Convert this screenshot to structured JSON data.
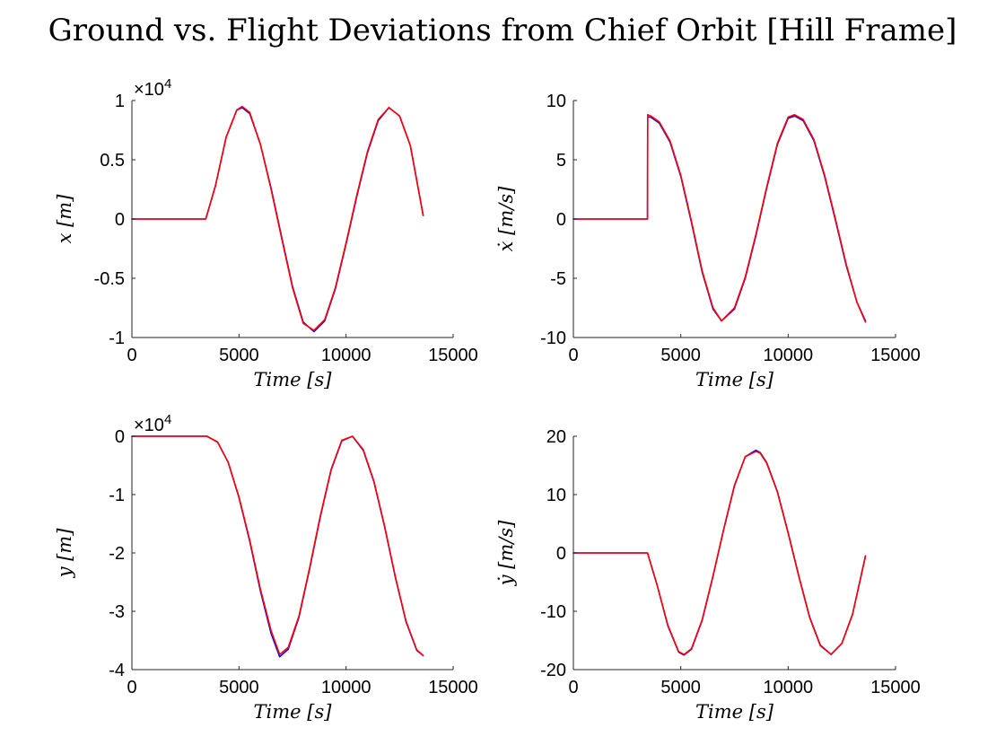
{
  "title": "Ground vs. Flight Deviations from Chief Orbit [Hill Frame]",
  "colors": {
    "ground": "#0000ff",
    "flight": "#ff0000",
    "axes": "#262626"
  },
  "chart_data": [
    {
      "type": "line",
      "xlabel": "Time [s]",
      "ylabel": "x [m]",
      "xlim": [
        0,
        15000
      ],
      "ylim": [
        -10000,
        10000
      ],
      "xticks": [
        0,
        5000,
        10000,
        15000
      ],
      "xtick_labels": [
        "0",
        "5000",
        "10000",
        "15000"
      ],
      "yticks": [
        -10000,
        -5000,
        0,
        5000,
        10000
      ],
      "ytick_labels": [
        "-1",
        "-0.5",
        "0",
        "0.5",
        "1"
      ],
      "exponent_label": "×10",
      "exponent_power": "4",
      "series": [
        {
          "color": "#0000ff",
          "x": [
            0,
            3450,
            3900,
            4400,
            4900,
            5150,
            5500,
            6000,
            6500,
            7000,
            7500,
            8000,
            8500,
            9000,
            9500,
            10000,
            10500,
            11000,
            11500,
            12000,
            12500,
            13000,
            13600
          ],
          "y": [
            0,
            0,
            2800,
            6900,
            9200,
            9400,
            8900,
            6300,
            2600,
            -1600,
            -5700,
            -8700,
            -9500,
            -8600,
            -5900,
            -2100,
            1900,
            5600,
            8300,
            9400,
            8700,
            6200,
            300
          ]
        },
        {
          "color": "#ff0000",
          "x": [
            0,
            3450,
            3900,
            4400,
            4900,
            5150,
            5500,
            6000,
            6500,
            7000,
            7500,
            8000,
            8500,
            9000,
            9500,
            10000,
            10500,
            11000,
            11500,
            12000,
            12500,
            13000,
            13600
          ],
          "y": [
            0,
            0,
            2800,
            6900,
            9200,
            9500,
            9000,
            6300,
            2500,
            -1700,
            -5800,
            -8800,
            -9400,
            -8500,
            -5800,
            -2000,
            2000,
            5700,
            8400,
            9400,
            8700,
            6200,
            300
          ]
        }
      ]
    },
    {
      "type": "line",
      "xlabel": "Time [s]",
      "ylabel": "ẋ [m/s]",
      "xlim": [
        0,
        15000
      ],
      "ylim": [
        -10,
        10
      ],
      "xticks": [
        0,
        5000,
        10000,
        15000
      ],
      "xtick_labels": [
        "0",
        "5000",
        "10000",
        "15000"
      ],
      "yticks": [
        -10,
        -5,
        0,
        5,
        10
      ],
      "ytick_labels": [
        "-10",
        "-5",
        "0",
        "5",
        "10"
      ],
      "series": [
        {
          "color": "#0000ff",
          "x": [
            0,
            3450,
            3460,
            3600,
            4000,
            4500,
            5000,
            5500,
            6000,
            6500,
            6900,
            7500,
            8000,
            8500,
            9000,
            9500,
            10000,
            10300,
            10700,
            11200,
            11700,
            12200,
            12700,
            13200,
            13600
          ],
          "y": [
            0,
            0,
            8.6,
            8.6,
            8.1,
            6.5,
            3.6,
            -0.3,
            -4.5,
            -7.6,
            -8.6,
            -7.6,
            -5.0,
            -1.4,
            2.6,
            6.3,
            8.5,
            8.7,
            8.3,
            6.6,
            3.6,
            -0.1,
            -3.9,
            -7.0,
            -8.6
          ]
        },
        {
          "color": "#ff0000",
          "x": [
            0,
            3450,
            3460,
            3600,
            4000,
            4500,
            5000,
            5500,
            6000,
            6500,
            6900,
            7500,
            8000,
            8500,
            9000,
            9500,
            10000,
            10300,
            10700,
            11200,
            11700,
            12200,
            12700,
            13200,
            13600
          ],
          "y": [
            0,
            0,
            8.8,
            8.7,
            8.2,
            6.6,
            3.7,
            -0.2,
            -4.4,
            -7.5,
            -8.6,
            -7.5,
            -4.9,
            -1.3,
            2.7,
            6.4,
            8.6,
            8.8,
            8.4,
            6.7,
            3.7,
            0,
            -3.8,
            -7.0,
            -8.7
          ]
        }
      ]
    },
    {
      "type": "line",
      "xlabel": "Time [s]",
      "ylabel": "y [m]",
      "xlim": [
        0,
        15000
      ],
      "ylim": [
        -40000,
        0
      ],
      "xticks": [
        0,
        5000,
        10000,
        15000
      ],
      "xtick_labels": [
        "0",
        "5000",
        "10000",
        "15000"
      ],
      "yticks": [
        -40000,
        -30000,
        -20000,
        -10000,
        0
      ],
      "ytick_labels": [
        "-4",
        "-3",
        "-2",
        "-1",
        "0"
      ],
      "exponent_label": "×10",
      "exponent_power": "4",
      "series": [
        {
          "color": "#0000ff",
          "x": [
            0,
            3500,
            4000,
            4500,
            5000,
            5500,
            6000,
            6500,
            6900,
            7300,
            7800,
            8300,
            8800,
            9300,
            9800,
            10300,
            10800,
            11300,
            11800,
            12300,
            12800,
            13300,
            13600
          ],
          "y": [
            0,
            0,
            -1000,
            -4500,
            -10500,
            -18000,
            -26500,
            -33800,
            -37800,
            -36500,
            -31000,
            -22700,
            -13800,
            -5800,
            -800,
            0,
            -2400,
            -7800,
            -15500,
            -24200,
            -31800,
            -36700,
            -37600
          ]
        },
        {
          "color": "#ff0000",
          "x": [
            0,
            3500,
            4000,
            4500,
            5000,
            5500,
            6000,
            6500,
            6900,
            7300,
            7800,
            8300,
            8800,
            9300,
            9800,
            10300,
            10800,
            11300,
            11800,
            12300,
            12800,
            13300,
            13600
          ],
          "y": [
            0,
            0,
            -1000,
            -4500,
            -10400,
            -17800,
            -26200,
            -33300,
            -37400,
            -36200,
            -30800,
            -22500,
            -13600,
            -5700,
            -700,
            0,
            -2300,
            -7700,
            -15400,
            -24100,
            -31700,
            -36600,
            -37600
          ]
        }
      ]
    },
    {
      "type": "line",
      "xlabel": "Time [s]",
      "ylabel": "ẏ [m/s]",
      "xlim": [
        0,
        15000
      ],
      "ylim": [
        -20,
        20
      ],
      "xticks": [
        0,
        5000,
        10000,
        15000
      ],
      "xtick_labels": [
        "0",
        "5000",
        "10000",
        "15000"
      ],
      "yticks": [
        -20,
        -10,
        0,
        10,
        20
      ],
      "ytick_labels": [
        "-20",
        "-10",
        "0",
        "10",
        "20"
      ],
      "series": [
        {
          "color": "#0000ff",
          "x": [
            0,
            3450,
            3900,
            4400,
            4900,
            5150,
            5500,
            6000,
            6500,
            7000,
            7500,
            8000,
            8500,
            8700,
            9000,
            9500,
            10000,
            10500,
            11000,
            11500,
            12000,
            12500,
            13000,
            13600
          ],
          "y": [
            0,
            0,
            -5.5,
            -12.5,
            -17.0,
            -17.5,
            -16.5,
            -11.5,
            -4.0,
            4.0,
            11.5,
            16.5,
            17.6,
            17.2,
            15.5,
            10.5,
            3.5,
            -4.0,
            -11.0,
            -15.8,
            -17.4,
            -15.5,
            -10.5,
            -0.5
          ]
        },
        {
          "color": "#ff0000",
          "x": [
            0,
            3450,
            3900,
            4400,
            4900,
            5150,
            5500,
            6000,
            6500,
            7000,
            7500,
            8000,
            8500,
            8700,
            9000,
            9500,
            10000,
            10500,
            11000,
            11500,
            12000,
            12500,
            13000,
            13600
          ],
          "y": [
            0,
            0,
            -5.5,
            -12.4,
            -16.9,
            -17.4,
            -16.4,
            -11.4,
            -3.9,
            4.1,
            11.6,
            16.5,
            17.4,
            17.1,
            15.4,
            10.4,
            3.4,
            -4.1,
            -11.1,
            -15.9,
            -17.4,
            -15.5,
            -10.5,
            -0.6
          ]
        }
      ]
    }
  ]
}
